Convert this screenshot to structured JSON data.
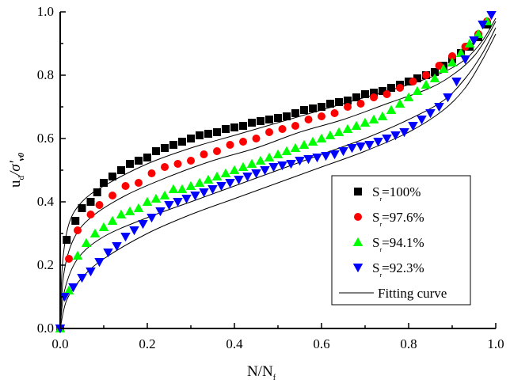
{
  "chart_data": {
    "type": "scatter",
    "title": "",
    "xlabel": "N/N",
    "xlabel_sub": "f",
    "ylabel": "u",
    "ylabel_sub": "d",
    "ylabel_rest": "/σ'",
    "ylabel_rest_sub": "v0",
    "xlim": [
      0.0,
      1.0
    ],
    "ylim": [
      0.0,
      1.0
    ],
    "x_ticks": [
      "0.0",
      "0.2",
      "0.4",
      "0.6",
      "0.8",
      "1.0"
    ],
    "y_ticks": [
      "0.0",
      "0.2",
      "0.4",
      "0.6",
      "0.8",
      "1.0"
    ],
    "grid": false,
    "legend_position": "bottom-right",
    "series": [
      {
        "name": "S",
        "name_sub": "r",
        "name_rest": "=100%",
        "marker": "square",
        "color": "#000000",
        "points": [
          [
            0.0,
            0.0
          ],
          [
            0.015,
            0.28
          ],
          [
            0.035,
            0.34
          ],
          [
            0.05,
            0.38
          ],
          [
            0.07,
            0.4
          ],
          [
            0.085,
            0.43
          ],
          [
            0.1,
            0.46
          ],
          [
            0.12,
            0.48
          ],
          [
            0.14,
            0.5
          ],
          [
            0.16,
            0.52
          ],
          [
            0.18,
            0.53
          ],
          [
            0.2,
            0.54
          ],
          [
            0.22,
            0.56
          ],
          [
            0.24,
            0.57
          ],
          [
            0.26,
            0.58
          ],
          [
            0.28,
            0.59
          ],
          [
            0.3,
            0.6
          ],
          [
            0.32,
            0.61
          ],
          [
            0.34,
            0.615
          ],
          [
            0.36,
            0.62
          ],
          [
            0.38,
            0.63
          ],
          [
            0.4,
            0.635
          ],
          [
            0.42,
            0.64
          ],
          [
            0.44,
            0.65
          ],
          [
            0.46,
            0.655
          ],
          [
            0.48,
            0.66
          ],
          [
            0.5,
            0.665
          ],
          [
            0.52,
            0.67
          ],
          [
            0.54,
            0.68
          ],
          [
            0.56,
            0.69
          ],
          [
            0.58,
            0.695
          ],
          [
            0.6,
            0.7
          ],
          [
            0.62,
            0.71
          ],
          [
            0.64,
            0.715
          ],
          [
            0.66,
            0.72
          ],
          [
            0.68,
            0.73
          ],
          [
            0.7,
            0.74
          ],
          [
            0.72,
            0.745
          ],
          [
            0.74,
            0.75
          ],
          [
            0.76,
            0.76
          ],
          [
            0.78,
            0.77
          ],
          [
            0.8,
            0.78
          ],
          [
            0.82,
            0.79
          ],
          [
            0.84,
            0.8
          ],
          [
            0.86,
            0.81
          ],
          [
            0.88,
            0.83
          ],
          [
            0.9,
            0.85
          ],
          [
            0.92,
            0.87
          ],
          [
            0.94,
            0.89
          ],
          [
            0.96,
            0.92
          ],
          [
            0.98,
            0.96
          ]
        ]
      },
      {
        "name": "S",
        "name_sub": "r",
        "name_rest": "=97.6%",
        "marker": "circle",
        "color": "#ff0000",
        "points": [
          [
            0.0,
            0.0
          ],
          [
            0.02,
            0.22
          ],
          [
            0.04,
            0.31
          ],
          [
            0.07,
            0.36
          ],
          [
            0.09,
            0.39
          ],
          [
            0.12,
            0.42
          ],
          [
            0.15,
            0.45
          ],
          [
            0.18,
            0.46
          ],
          [
            0.21,
            0.49
          ],
          [
            0.24,
            0.51
          ],
          [
            0.27,
            0.52
          ],
          [
            0.3,
            0.53
          ],
          [
            0.33,
            0.55
          ],
          [
            0.36,
            0.56
          ],
          [
            0.39,
            0.58
          ],
          [
            0.42,
            0.59
          ],
          [
            0.45,
            0.6
          ],
          [
            0.48,
            0.62
          ],
          [
            0.51,
            0.63
          ],
          [
            0.54,
            0.64
          ],
          [
            0.57,
            0.66
          ],
          [
            0.6,
            0.67
          ],
          [
            0.63,
            0.68
          ],
          [
            0.66,
            0.7
          ],
          [
            0.69,
            0.71
          ],
          [
            0.72,
            0.73
          ],
          [
            0.75,
            0.74
          ],
          [
            0.78,
            0.76
          ],
          [
            0.81,
            0.78
          ],
          [
            0.84,
            0.8
          ],
          [
            0.87,
            0.83
          ],
          [
            0.9,
            0.86
          ],
          [
            0.93,
            0.89
          ],
          [
            0.96,
            0.93
          ],
          [
            0.98,
            0.97
          ]
        ]
      },
      {
        "name": "S",
        "name_sub": "r",
        "name_rest": "=94.1%",
        "marker": "triangle-up",
        "color": "#00ff00",
        "points": [
          [
            0.0,
            0.0
          ],
          [
            0.02,
            0.12
          ],
          [
            0.04,
            0.23
          ],
          [
            0.06,
            0.27
          ],
          [
            0.08,
            0.3
          ],
          [
            0.1,
            0.32
          ],
          [
            0.12,
            0.34
          ],
          [
            0.14,
            0.36
          ],
          [
            0.16,
            0.37
          ],
          [
            0.18,
            0.38
          ],
          [
            0.2,
            0.4
          ],
          [
            0.22,
            0.41
          ],
          [
            0.24,
            0.42
          ],
          [
            0.26,
            0.44
          ],
          [
            0.28,
            0.44
          ],
          [
            0.3,
            0.45
          ],
          [
            0.32,
            0.46
          ],
          [
            0.34,
            0.47
          ],
          [
            0.36,
            0.48
          ],
          [
            0.38,
            0.49
          ],
          [
            0.4,
            0.5
          ],
          [
            0.42,
            0.51
          ],
          [
            0.44,
            0.52
          ],
          [
            0.46,
            0.53
          ],
          [
            0.48,
            0.54
          ],
          [
            0.5,
            0.55
          ],
          [
            0.52,
            0.56
          ],
          [
            0.54,
            0.57
          ],
          [
            0.56,
            0.58
          ],
          [
            0.58,
            0.59
          ],
          [
            0.6,
            0.6
          ],
          [
            0.62,
            0.61
          ],
          [
            0.64,
            0.62
          ],
          [
            0.66,
            0.63
          ],
          [
            0.68,
            0.64
          ],
          [
            0.7,
            0.65
          ],
          [
            0.72,
            0.66
          ],
          [
            0.74,
            0.67
          ],
          [
            0.76,
            0.69
          ],
          [
            0.78,
            0.71
          ],
          [
            0.8,
            0.73
          ],
          [
            0.82,
            0.75
          ],
          [
            0.84,
            0.77
          ],
          [
            0.86,
            0.79
          ],
          [
            0.88,
            0.82
          ],
          [
            0.9,
            0.84
          ],
          [
            0.92,
            0.87
          ],
          [
            0.94,
            0.9
          ],
          [
            0.96,
            0.93
          ],
          [
            0.98,
            0.97
          ]
        ]
      },
      {
        "name": "S",
        "name_sub": "r",
        "name_rest": "=92.3%",
        "marker": "triangle-down",
        "color": "#0000ff",
        "points": [
          [
            0.0,
            0.0
          ],
          [
            0.01,
            0.1
          ],
          [
            0.03,
            0.13
          ],
          [
            0.05,
            0.16
          ],
          [
            0.07,
            0.18
          ],
          [
            0.09,
            0.21
          ],
          [
            0.11,
            0.24
          ],
          [
            0.13,
            0.26
          ],
          [
            0.15,
            0.29
          ],
          [
            0.17,
            0.31
          ],
          [
            0.19,
            0.33
          ],
          [
            0.21,
            0.35
          ],
          [
            0.23,
            0.37
          ],
          [
            0.25,
            0.39
          ],
          [
            0.27,
            0.4
          ],
          [
            0.29,
            0.41
          ],
          [
            0.31,
            0.42
          ],
          [
            0.33,
            0.43
          ],
          [
            0.35,
            0.44
          ],
          [
            0.37,
            0.45
          ],
          [
            0.39,
            0.46
          ],
          [
            0.41,
            0.47
          ],
          [
            0.43,
            0.48
          ],
          [
            0.45,
            0.49
          ],
          [
            0.47,
            0.5
          ],
          [
            0.49,
            0.51
          ],
          [
            0.51,
            0.515
          ],
          [
            0.53,
            0.52
          ],
          [
            0.55,
            0.53
          ],
          [
            0.57,
            0.535
          ],
          [
            0.59,
            0.54
          ],
          [
            0.61,
            0.545
          ],
          [
            0.63,
            0.55
          ],
          [
            0.65,
            0.56
          ],
          [
            0.67,
            0.57
          ],
          [
            0.69,
            0.575
          ],
          [
            0.71,
            0.58
          ],
          [
            0.73,
            0.59
          ],
          [
            0.75,
            0.6
          ],
          [
            0.77,
            0.61
          ],
          [
            0.79,
            0.62
          ],
          [
            0.81,
            0.64
          ],
          [
            0.83,
            0.66
          ],
          [
            0.85,
            0.68
          ],
          [
            0.87,
            0.7
          ],
          [
            0.89,
            0.73
          ],
          [
            0.91,
            0.78
          ],
          [
            0.93,
            0.85
          ],
          [
            0.95,
            0.91
          ],
          [
            0.97,
            0.96
          ],
          [
            0.99,
            0.99
          ]
        ]
      }
    ],
    "fitting_curves": [
      {
        "name": "fit-100",
        "points": [
          [
            0.0,
            0.0
          ],
          [
            0.005,
            0.2
          ],
          [
            0.02,
            0.33
          ],
          [
            0.05,
            0.4
          ],
          [
            0.1,
            0.45
          ],
          [
            0.2,
            0.52
          ],
          [
            0.3,
            0.57
          ],
          [
            0.4,
            0.61
          ],
          [
            0.5,
            0.65
          ],
          [
            0.6,
            0.69
          ],
          [
            0.7,
            0.73
          ],
          [
            0.8,
            0.77
          ],
          [
            0.88,
            0.81
          ],
          [
            0.93,
            0.85
          ],
          [
            0.97,
            0.91
          ],
          [
            1.0,
            0.98
          ]
        ]
      },
      {
        "name": "fit-97.6",
        "points": [
          [
            0.0,
            0.0
          ],
          [
            0.008,
            0.17
          ],
          [
            0.03,
            0.28
          ],
          [
            0.07,
            0.35
          ],
          [
            0.15,
            0.42
          ],
          [
            0.25,
            0.48
          ],
          [
            0.35,
            0.53
          ],
          [
            0.45,
            0.57
          ],
          [
            0.55,
            0.62
          ],
          [
            0.65,
            0.66
          ],
          [
            0.75,
            0.71
          ],
          [
            0.85,
            0.76
          ],
          [
            0.91,
            0.81
          ],
          [
            0.95,
            0.86
          ],
          [
            0.98,
            0.92
          ],
          [
            1.0,
            0.97
          ]
        ]
      },
      {
        "name": "fit-94.1",
        "points": [
          [
            0.0,
            0.0
          ],
          [
            0.01,
            0.12
          ],
          [
            0.04,
            0.22
          ],
          [
            0.1,
            0.29
          ],
          [
            0.2,
            0.35
          ],
          [
            0.3,
            0.4
          ],
          [
            0.4,
            0.45
          ],
          [
            0.5,
            0.5
          ],
          [
            0.6,
            0.55
          ],
          [
            0.7,
            0.6
          ],
          [
            0.8,
            0.66
          ],
          [
            0.88,
            0.72
          ],
          [
            0.93,
            0.79
          ],
          [
            0.97,
            0.87
          ],
          [
            1.0,
            0.95
          ]
        ]
      },
      {
        "name": "fit-92.3",
        "points": [
          [
            0.0,
            0.0
          ],
          [
            0.015,
            0.09
          ],
          [
            0.05,
            0.16
          ],
          [
            0.1,
            0.22
          ],
          [
            0.2,
            0.3
          ],
          [
            0.3,
            0.36
          ],
          [
            0.4,
            0.41
          ],
          [
            0.5,
            0.46
          ],
          [
            0.6,
            0.51
          ],
          [
            0.7,
            0.56
          ],
          [
            0.8,
            0.62
          ],
          [
            0.88,
            0.69
          ],
          [
            0.93,
            0.76
          ],
          [
            0.97,
            0.85
          ],
          [
            1.0,
            0.93
          ]
        ]
      }
    ],
    "legend": {
      "entries": [
        {
          "prefix": "S",
          "sub": "r",
          "suffix": "=100%",
          "marker": "square",
          "color": "#000000"
        },
        {
          "prefix": "S",
          "sub": "r",
          "suffix": "=97.6%",
          "marker": "circle",
          "color": "#ff0000"
        },
        {
          "prefix": "S",
          "sub": "r",
          "suffix": "=94.1%",
          "marker": "triangle-up",
          "color": "#00ff00"
        },
        {
          "prefix": "S",
          "sub": "r",
          "suffix": "=92.3%",
          "marker": "triangle-down",
          "color": "#0000ff"
        },
        {
          "prefix": "Fitting curve",
          "sub": "",
          "suffix": "",
          "marker": "line",
          "color": "#000000"
        }
      ]
    }
  }
}
